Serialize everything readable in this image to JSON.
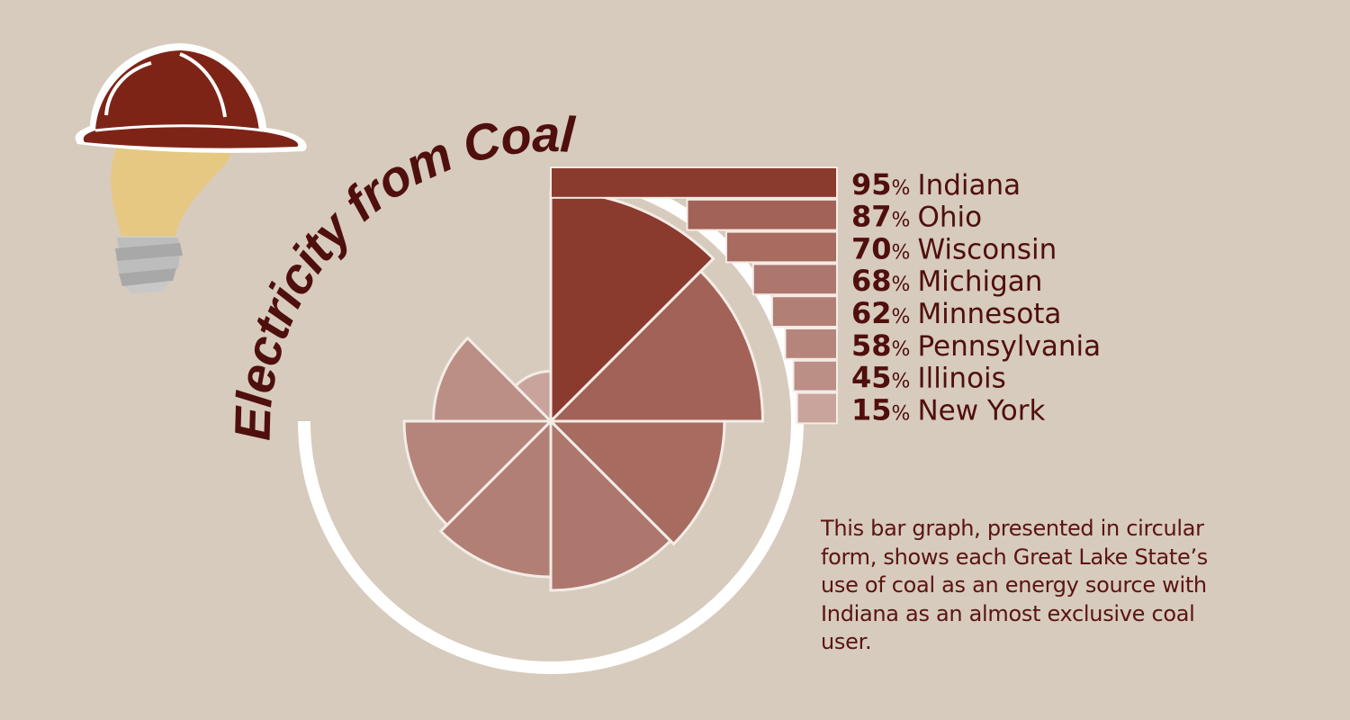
{
  "caption": "This bar graph, presented in circular form, shows each Great Lake State’s use of coal as an energy source with Indiana as an almost exclusive coal user.",
  "chart_data": {
    "type": "bar",
    "form": "radial",
    "title": "Electricity from Coal",
    "unit": "%",
    "categories": [
      "Indiana",
      "Ohio",
      "Wisconsin",
      "Michigan",
      "Minnesota",
      "Pennsylvania",
      "Illinois",
      "New York"
    ],
    "values": [
      95,
      87,
      70,
      68,
      62,
      58,
      45,
      15
    ],
    "colors": [
      "#8b3a2e",
      "#a36257",
      "#a86b60",
      "#ad776d",
      "#b27f75",
      "#b5857b",
      "#bb8f86",
      "#c9a49d"
    ]
  },
  "icons": [
    "hard-hat-icon",
    "light-bulb-icon"
  ]
}
